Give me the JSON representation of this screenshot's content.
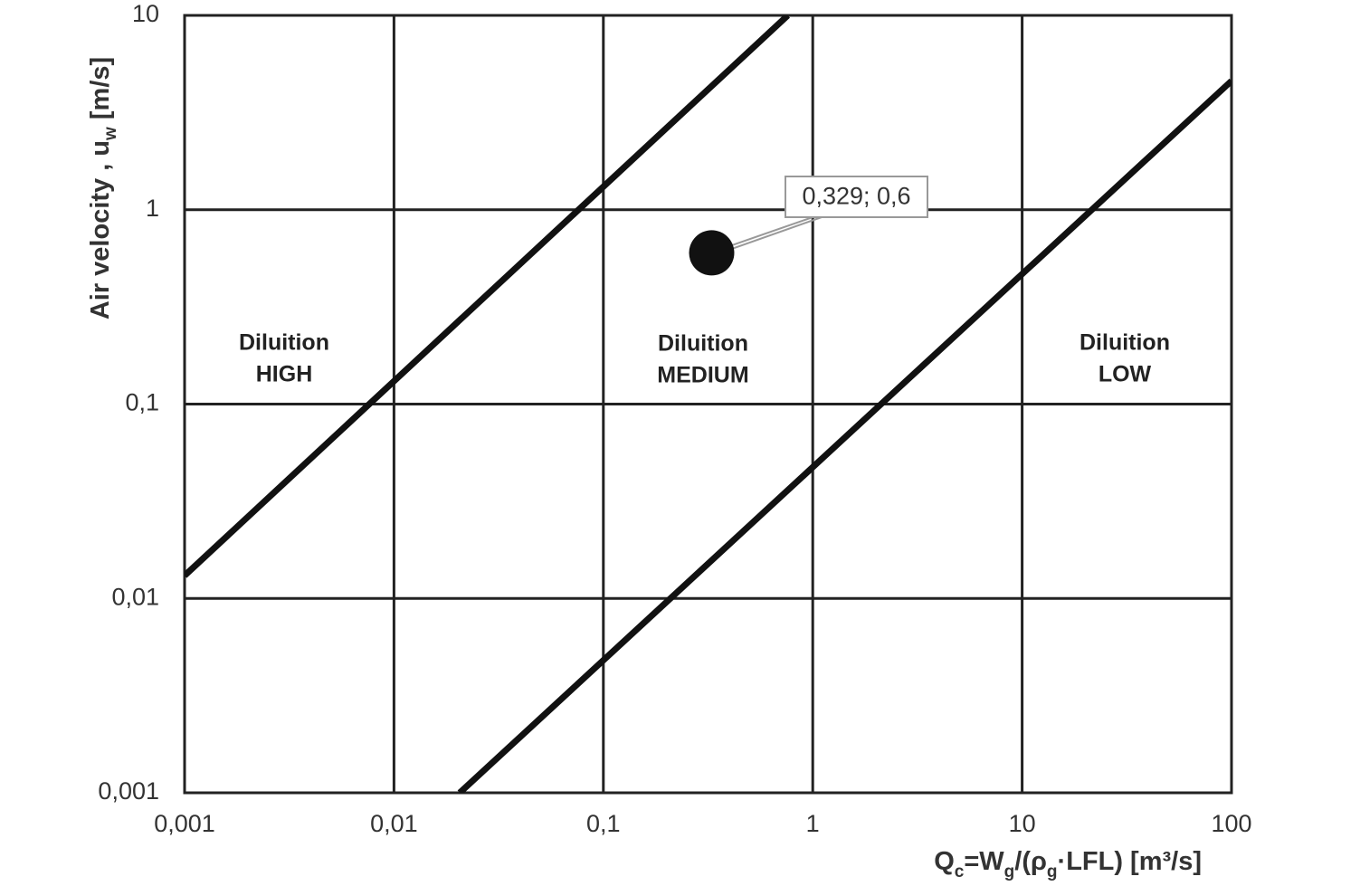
{
  "chart_data": {
    "type": "line",
    "log_x": true,
    "log_y": true,
    "grid": true,
    "xlim": [
      0.001,
      100
    ],
    "ylim": [
      0.001,
      10
    ],
    "xticks": [
      {
        "value": 0.001,
        "label": "0,001"
      },
      {
        "value": 0.01,
        "label": "0,01"
      },
      {
        "value": 0.1,
        "label": "0,1"
      },
      1,
      10,
      100
    ],
    "yticks": [
      {
        "value": 0.001,
        "label": "0,001"
      },
      {
        "value": 0.01,
        "label": "0,01"
      },
      {
        "value": 0.1,
        "label": "0,1"
      },
      1,
      10
    ],
    "x_label": [
      {
        "text": "Q"
      },
      {
        "text": "c",
        "sub": true
      },
      {
        "text": "=W"
      },
      {
        "text": "g",
        "sub": true
      },
      {
        "text": "/(ρ"
      },
      {
        "text": "g",
        "sub": true
      },
      {
        "text": "·LFL) [m³/s]"
      }
    ],
    "y_label": [
      {
        "text": "Air velocity , u"
      },
      {
        "text": "w",
        "sub": true
      },
      {
        "text": " [m/s]"
      }
    ],
    "series": [
      {
        "color": "#111111",
        "x": [
          0.001,
          0.76
        ],
        "values": [
          0.0131,
          10
        ]
      },
      {
        "color": "#111111",
        "x": [
          0.0206,
          100
        ],
        "values": [
          0.001,
          4.6
        ]
      }
    ],
    "point": {
      "x": 0.329,
      "y": 0.6,
      "color": "#111111",
      "label": "0,329; 0,6"
    },
    "regions": [
      {
        "lines": [
          "Diluition",
          "HIGH"
        ]
      },
      {
        "lines": [
          "Diluition",
          "MEDIUM"
        ]
      },
      {
        "lines": [
          "Diluition",
          "LOW"
        ]
      }
    ]
  }
}
